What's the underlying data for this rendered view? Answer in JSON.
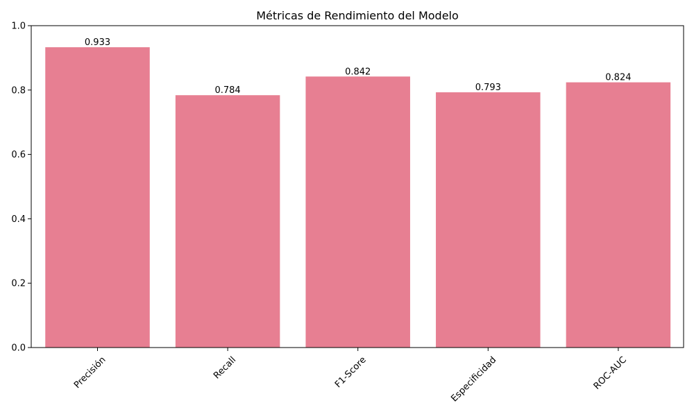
{
  "chart_data": {
    "type": "bar",
    "title": "Métricas de Rendimiento del Modelo",
    "xlabel": "",
    "ylabel": "",
    "categories": [
      "Precisión",
      "Recall",
      "F1-Score",
      "Especificidad",
      "ROC-AUC"
    ],
    "values": [
      0.933,
      0.784,
      0.842,
      0.793,
      0.824
    ],
    "data_labels": [
      "0.933",
      "0.784",
      "0.842",
      "0.793",
      "0.824"
    ],
    "ylim": [
      0,
      1.0
    ],
    "yticks": [
      0.0,
      0.2,
      0.4,
      0.6,
      0.8,
      1.0
    ],
    "ytick_labels": [
      "0.0",
      "0.2",
      "0.4",
      "0.6",
      "0.8",
      "1.0"
    ],
    "bar_color": "#e77f92",
    "grid": false,
    "xtick_rotation_deg": 45
  }
}
